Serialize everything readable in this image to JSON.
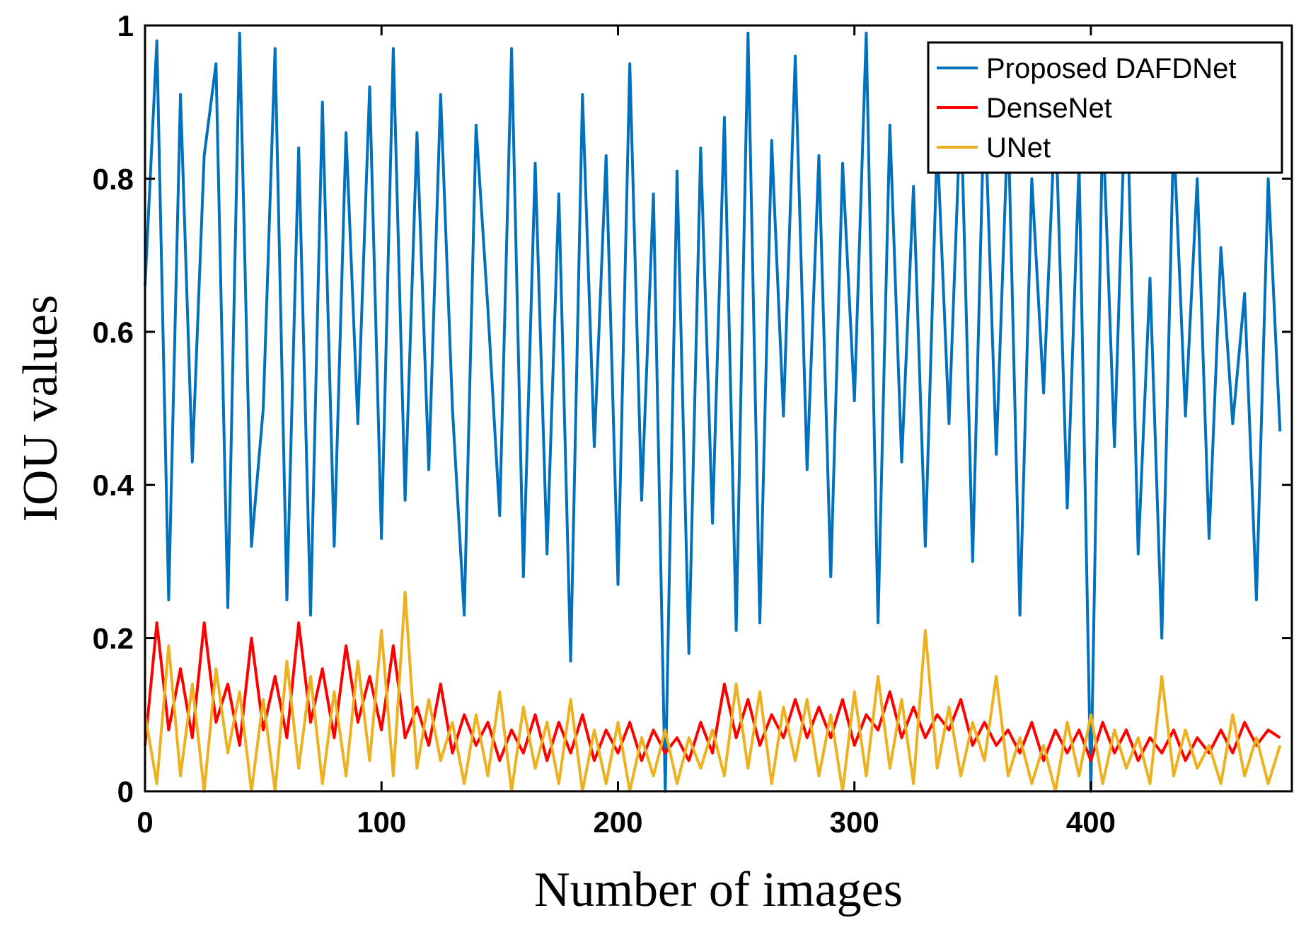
{
  "chart_data": {
    "type": "line",
    "title": "",
    "xlabel": "Number of images",
    "ylabel": "IOU values",
    "xlim": [
      0,
      485
    ],
    "ylim": [
      0,
      1
    ],
    "xticks": [
      0,
      100,
      200,
      300,
      400
    ],
    "xtick_labels": [
      "0",
      "100",
      "200",
      "300",
      "400"
    ],
    "yticks": [
      0,
      0.2,
      0.4,
      0.6,
      0.8,
      1
    ],
    "ytick_labels": [
      "0",
      "0.2",
      "0.4",
      "0.6",
      "0.8",
      "1"
    ],
    "grid": false,
    "legend": {
      "placement": "top-right"
    },
    "series": [
      {
        "name": "Proposed DAFDNet",
        "color": "#0072BD",
        "x": [
          0,
          5,
          10,
          15,
          20,
          25,
          30,
          35,
          40,
          45,
          50,
          55,
          60,
          65,
          70,
          75,
          80,
          85,
          90,
          95,
          100,
          105,
          110,
          115,
          120,
          125,
          130,
          135,
          140,
          145,
          150,
          155,
          160,
          165,
          170,
          175,
          180,
          185,
          190,
          195,
          200,
          205,
          210,
          215,
          220,
          225,
          230,
          235,
          240,
          245,
          250,
          255,
          260,
          265,
          270,
          275,
          280,
          285,
          290,
          295,
          300,
          305,
          310,
          315,
          320,
          325,
          330,
          335,
          340,
          345,
          350,
          355,
          360,
          365,
          370,
          375,
          380,
          385,
          390,
          395,
          400,
          405,
          410,
          415,
          420,
          425,
          430,
          435,
          440,
          445,
          450,
          455,
          460,
          465,
          470,
          475,
          480
        ],
        "y": [
          0.66,
          0.98,
          0.25,
          0.91,
          0.43,
          0.83,
          0.95,
          0.24,
          0.99,
          0.32,
          0.5,
          0.97,
          0.25,
          0.84,
          0.23,
          0.9,
          0.32,
          0.86,
          0.48,
          0.92,
          0.33,
          0.97,
          0.38,
          0.86,
          0.42,
          0.91,
          0.5,
          0.23,
          0.87,
          0.63,
          0.36,
          0.97,
          0.28,
          0.82,
          0.31,
          0.78,
          0.17,
          0.91,
          0.45,
          0.83,
          0.27,
          0.95,
          0.38,
          0.78,
          0.0,
          0.81,
          0.18,
          0.84,
          0.35,
          0.88,
          0.21,
          0.99,
          0.22,
          0.85,
          0.49,
          0.96,
          0.42,
          0.83,
          0.28,
          0.82,
          0.51,
          0.99,
          0.22,
          0.87,
          0.43,
          0.79,
          0.32,
          0.85,
          0.48,
          0.9,
          0.3,
          0.91,
          0.44,
          0.88,
          0.23,
          0.8,
          0.52,
          0.89,
          0.37,
          0.82,
          0.0,
          0.88,
          0.45,
          0.95,
          0.31,
          0.67,
          0.2,
          0.86,
          0.49,
          0.8,
          0.33,
          0.71,
          0.48,
          0.65,
          0.25,
          0.8,
          0.47
        ]
      },
      {
        "name": "DenseNet",
        "color": "#FF0000",
        "x": [
          0,
          5,
          10,
          15,
          20,
          25,
          30,
          35,
          40,
          45,
          50,
          55,
          60,
          65,
          70,
          75,
          80,
          85,
          90,
          95,
          100,
          105,
          110,
          115,
          120,
          125,
          130,
          135,
          140,
          145,
          150,
          155,
          160,
          165,
          170,
          175,
          180,
          185,
          190,
          195,
          200,
          205,
          210,
          215,
          220,
          225,
          230,
          235,
          240,
          245,
          250,
          255,
          260,
          265,
          270,
          275,
          280,
          285,
          290,
          295,
          300,
          305,
          310,
          315,
          320,
          325,
          330,
          335,
          340,
          345,
          350,
          355,
          360,
          365,
          370,
          375,
          380,
          385,
          390,
          395,
          400,
          405,
          410,
          415,
          420,
          425,
          430,
          435,
          440,
          445,
          450,
          455,
          460,
          465,
          470,
          475,
          480
        ],
        "y": [
          0.06,
          0.22,
          0.08,
          0.16,
          0.07,
          0.22,
          0.09,
          0.14,
          0.06,
          0.2,
          0.08,
          0.15,
          0.07,
          0.22,
          0.09,
          0.16,
          0.07,
          0.19,
          0.09,
          0.15,
          0.08,
          0.19,
          0.07,
          0.11,
          0.06,
          0.14,
          0.05,
          0.1,
          0.06,
          0.09,
          0.04,
          0.08,
          0.05,
          0.1,
          0.04,
          0.09,
          0.05,
          0.1,
          0.04,
          0.08,
          0.05,
          0.09,
          0.04,
          0.08,
          0.05,
          0.07,
          0.04,
          0.09,
          0.05,
          0.14,
          0.07,
          0.12,
          0.06,
          0.1,
          0.07,
          0.12,
          0.07,
          0.11,
          0.07,
          0.12,
          0.06,
          0.1,
          0.08,
          0.13,
          0.07,
          0.11,
          0.07,
          0.1,
          0.08,
          0.12,
          0.06,
          0.09,
          0.06,
          0.08,
          0.05,
          0.09,
          0.04,
          0.08,
          0.05,
          0.08,
          0.04,
          0.09,
          0.05,
          0.08,
          0.04,
          0.07,
          0.05,
          0.08,
          0.04,
          0.07,
          0.05,
          0.08,
          0.05,
          0.09,
          0.06,
          0.08,
          0.07
        ]
      },
      {
        "name": "UNet",
        "color": "#EDB120",
        "x": [
          0,
          5,
          10,
          15,
          20,
          25,
          30,
          35,
          40,
          45,
          50,
          55,
          60,
          65,
          70,
          75,
          80,
          85,
          90,
          95,
          100,
          105,
          110,
          115,
          120,
          125,
          130,
          135,
          140,
          145,
          150,
          155,
          160,
          165,
          170,
          175,
          180,
          185,
          190,
          195,
          200,
          205,
          210,
          215,
          220,
          225,
          230,
          235,
          240,
          245,
          250,
          255,
          260,
          265,
          270,
          275,
          280,
          285,
          290,
          295,
          300,
          305,
          310,
          315,
          320,
          325,
          330,
          335,
          340,
          345,
          350,
          355,
          360,
          365,
          370,
          375,
          380,
          385,
          390,
          395,
          400,
          405,
          410,
          415,
          420,
          425,
          430,
          435,
          440,
          445,
          450,
          455,
          460,
          465,
          470,
          475,
          480
        ],
        "y": [
          0.1,
          0.01,
          0.19,
          0.02,
          0.14,
          0.0,
          0.16,
          0.05,
          0.13,
          0.0,
          0.12,
          0.0,
          0.17,
          0.03,
          0.15,
          0.01,
          0.13,
          0.02,
          0.17,
          0.04,
          0.21,
          0.02,
          0.26,
          0.03,
          0.12,
          0.04,
          0.09,
          0.01,
          0.1,
          0.02,
          0.13,
          0.0,
          0.11,
          0.03,
          0.09,
          0.01,
          0.12,
          0.0,
          0.08,
          0.01,
          0.09,
          0.0,
          0.07,
          0.02,
          0.08,
          0.01,
          0.07,
          0.03,
          0.08,
          0.02,
          0.14,
          0.03,
          0.13,
          0.01,
          0.11,
          0.04,
          0.12,
          0.02,
          0.1,
          0.0,
          0.13,
          0.02,
          0.15,
          0.03,
          0.12,
          0.01,
          0.21,
          0.03,
          0.11,
          0.02,
          0.09,
          0.04,
          0.15,
          0.02,
          0.07,
          0.01,
          0.06,
          0.0,
          0.09,
          0.02,
          0.1,
          0.01,
          0.08,
          0.03,
          0.07,
          0.01,
          0.15,
          0.02,
          0.08,
          0.03,
          0.06,
          0.01,
          0.1,
          0.02,
          0.07,
          0.01,
          0.06
        ]
      }
    ]
  }
}
